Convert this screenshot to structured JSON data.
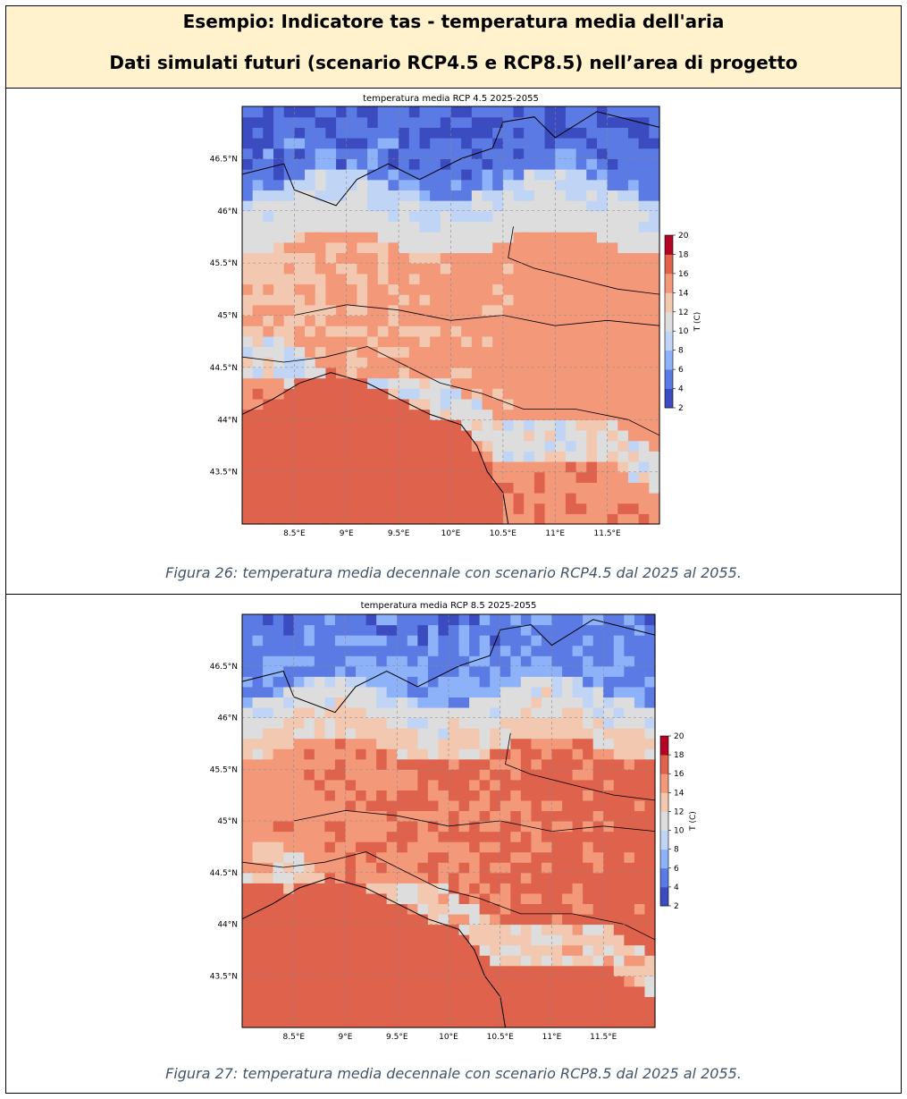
{
  "header": {
    "line1": "Esempio: Indicatore tas - temperatura media dell'aria",
    "line2": "Dati simulati futuri (scenario RCP4.5 e RCP8.5) nell’area di progetto"
  },
  "colors": {
    "header_bg": "#fff2cc",
    "caption": "#44546a",
    "colormap": [
      "#3b4cc0",
      "#5b7ae4",
      "#8eb2f9",
      "#c0d4f5",
      "#dddddd",
      "#f2c8b0",
      "#f4987a",
      "#df634c",
      "#b40426"
    ]
  },
  "maps": [
    {
      "id": "rcp45",
      "title": "temperatura media RCP 4.5 2025-2055",
      "caption": "Figura 26: temperatura media decennale con scenario RCP4.5 dal 2025 al 2055.",
      "lon_ticks": [
        "8.5°E",
        "9°E",
        "9.5°E",
        "10°E",
        "10.5°E",
        "11°E",
        "11.5°E"
      ],
      "lat_ticks": [
        "46.5°N",
        "46°N",
        "45.5°N",
        "45°N",
        "44.5°N",
        "44°N",
        "43.5°N"
      ],
      "colorbar": {
        "label": "T (C)",
        "ticks": [
          "20",
          "18",
          "16",
          "14",
          "12",
          "10",
          "8",
          "6",
          "4",
          "2"
        ],
        "range": [
          2,
          20
        ]
      },
      "field": {
        "lon_range": [
          8.0,
          12.0
        ],
        "lat_range": [
          43.0,
          47.0
        ],
        "mountain_mean_c": 4.5,
        "plain_mean_c": 13.0,
        "sea_mean_c": 16.5
      }
    },
    {
      "id": "rcp85",
      "title": "temperatura media RCP 8.5 2025-2055",
      "caption": "Figura 27: temperatura media decennale con scenario RCP8.5 dal 2025 al 2055.",
      "lon_ticks": [
        "8.5°E",
        "9°E",
        "9.5°E",
        "10°E",
        "10.5°E",
        "11°E",
        "11.5°E"
      ],
      "lat_ticks": [
        "46.5°N",
        "46°N",
        "45.5°N",
        "45°N",
        "44.5°N",
        "44°N",
        "43.5°N"
      ],
      "colorbar": {
        "label": "T (C)",
        "ticks": [
          "20",
          "18",
          "16",
          "14",
          "12",
          "10",
          "8",
          "6",
          "4",
          "2"
        ],
        "range": [
          2,
          20
        ]
      },
      "field": {
        "lon_range": [
          8.0,
          12.0
        ],
        "lat_range": [
          43.0,
          47.0
        ],
        "mountain_mean_c": 5.5,
        "plain_mean_c": 14.5,
        "sea_mean_c": 17.0
      }
    }
  ]
}
